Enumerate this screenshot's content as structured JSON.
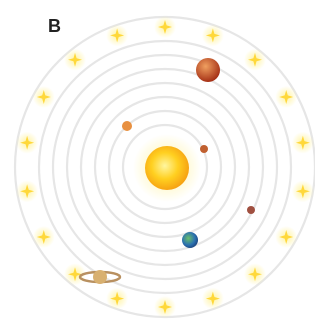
{
  "label": "B"
}
